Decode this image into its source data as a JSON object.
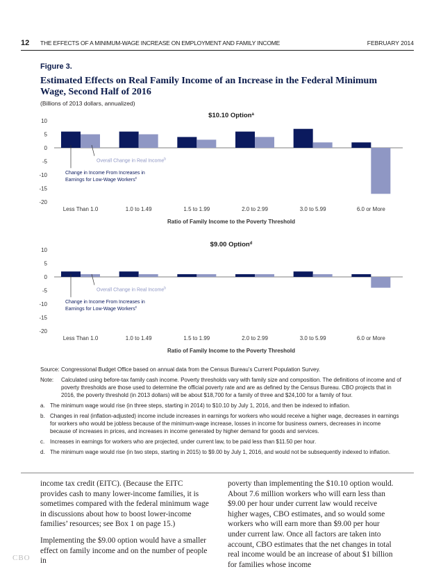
{
  "header": {
    "page_number": "12",
    "running_title": "THE EFFECTS OF A MINIMUM-WAGE INCREASE ON EMPLOYMENT AND FAMILY INCOME",
    "date": "FEBRUARY 2014"
  },
  "figure": {
    "label": "Figure 3.",
    "title": "Estimated Effects on Real Family Income of an Increase in the Federal Minimum Wage, Second Half of 2016",
    "subtitle": "(Billions of 2013 dollars, annualized)"
  },
  "colors": {
    "earnings": "#0b1a5e",
    "overall": "#8f97c4",
    "axis": "#555555",
    "title_navy": "#0a1a4a"
  },
  "chart_data": [
    {
      "type": "bar",
      "title": "$10.10 Option",
      "title_sup": "a",
      "xlabel": "Ratio of Family Income to the Poverty Threshold",
      "ylabel": "",
      "ylim": [
        -20,
        10
      ],
      "yticks": [
        "10",
        "5",
        "0",
        "-5",
        "-10",
        "-15",
        "-20"
      ],
      "categories": [
        "Less Than 1.0",
        "1.0 to 1.49",
        "1.5 to 1.99",
        "2.0 to 2.99",
        "3.0 to 5.99",
        "6.0 or More"
      ],
      "series": [
        {
          "name": "Change in Income From Increases in Earnings for Low-Wage Workers",
          "values": [
            6,
            6,
            4,
            6,
            7,
            2
          ]
        },
        {
          "name": "Overall Change in Real Income",
          "values": [
            5,
            5,
            3,
            4,
            2,
            -17
          ]
        }
      ],
      "annotations": {
        "earnings_line1": "Change in Income From Increases in",
        "earnings_line2": "Earnings for Low-Wage Workers",
        "earnings_sup": "c",
        "overall": "Overall Change in Real Income",
        "overall_sup": "b"
      },
      "grid": false
    },
    {
      "type": "bar",
      "title": "$9.00 Option",
      "title_sup": "d",
      "xlabel": "Ratio of Family Income to the Poverty Threshold",
      "ylabel": "",
      "ylim": [
        -20,
        10
      ],
      "yticks": [
        "10",
        "5",
        "0",
        "-5",
        "-10",
        "-15",
        "-20"
      ],
      "categories": [
        "Less Than 1.0",
        "1.0 to 1.49",
        "1.5 to 1.99",
        "2.0 to 2.99",
        "3.0 to 5.99",
        "6.0 or More"
      ],
      "series": [
        {
          "name": "Change in Income From Increases in Earnings for Low-Wage Workers",
          "values": [
            2,
            2,
            1,
            1,
            2,
            1
          ]
        },
        {
          "name": "Overall Change in Real Income",
          "values": [
            1,
            1,
            1,
            1,
            1,
            -4
          ]
        }
      ],
      "annotations": {
        "earnings_line1": "Change in Income From Increases in",
        "earnings_line2": "Earnings for Low-Wage Workers",
        "earnings_sup": "c",
        "overall": "Overall Change in Real Income",
        "overall_sup": "b"
      },
      "grid": false
    }
  ],
  "notes": {
    "source_key": "Source:",
    "source_text": "Congressional Budget Office based on annual data from the Census Bureau’s Current Population Survey.",
    "note_key": "Note:",
    "note_text": "Calculated using before-tax family cash income. Poverty thresholds vary with family size and composition. The definitions of income and of poverty thresholds are those used to determine the official poverty rate and are as defined by the Census Bureau. CBO projects that in 2016, the poverty threshold (in 2013 dollars) will be about $18,700 for a family of three and $24,100 for a family of four.",
    "a_key": "a.",
    "a_text": "The minimum wage would rise (in three steps, starting in 2014) to $10.10 by July 1, 2016, and then be indexed to inflation.",
    "b_key": "b.",
    "b_text": "Changes in real (inflation-adjusted) income include increases in earnings for workers who would receive a higher wage, decreases in earnings for workers who would be jobless because of the minimum-wage increase, losses in income for business owners, decreases in income because of increases in prices, and increases in income generated by higher demand for goods and services.",
    "c_key": "c.",
    "c_text": "Increases in earnings for workers who are projected, under current law, to be paid less than $11.50 per hour.",
    "d_key": "d.",
    "d_text": "The minimum wage would rise (in two steps, starting in 2015) to $9.00 by July 1, 2016, and would not be subsequently indexed to inflation."
  },
  "body": {
    "col1_p1": "income tax credit (EITC). (Because the EITC provides cash to many lower-income families, it is sometimes compared with the federal minimum wage in discussions about how to boost lower-income families’ resources; see Box 1 on page 15.)",
    "col1_p2": "Implementing the $9.00 option would have a smaller effect on family income and on the number of people in",
    "col2_p1": "poverty than implementing the $10.10 option would. About 7.6 million workers who will earn less than $9.00 per hour under current law would receive higher wages, CBO estimates, and so would some workers who will earn more than $9.00 per hour under current law. Once all factors are taken into account, CBO estimates that the net changes in total real income would be an increase of about $1 billion for families whose income"
  },
  "footer": {
    "logo_text": "CBO"
  }
}
